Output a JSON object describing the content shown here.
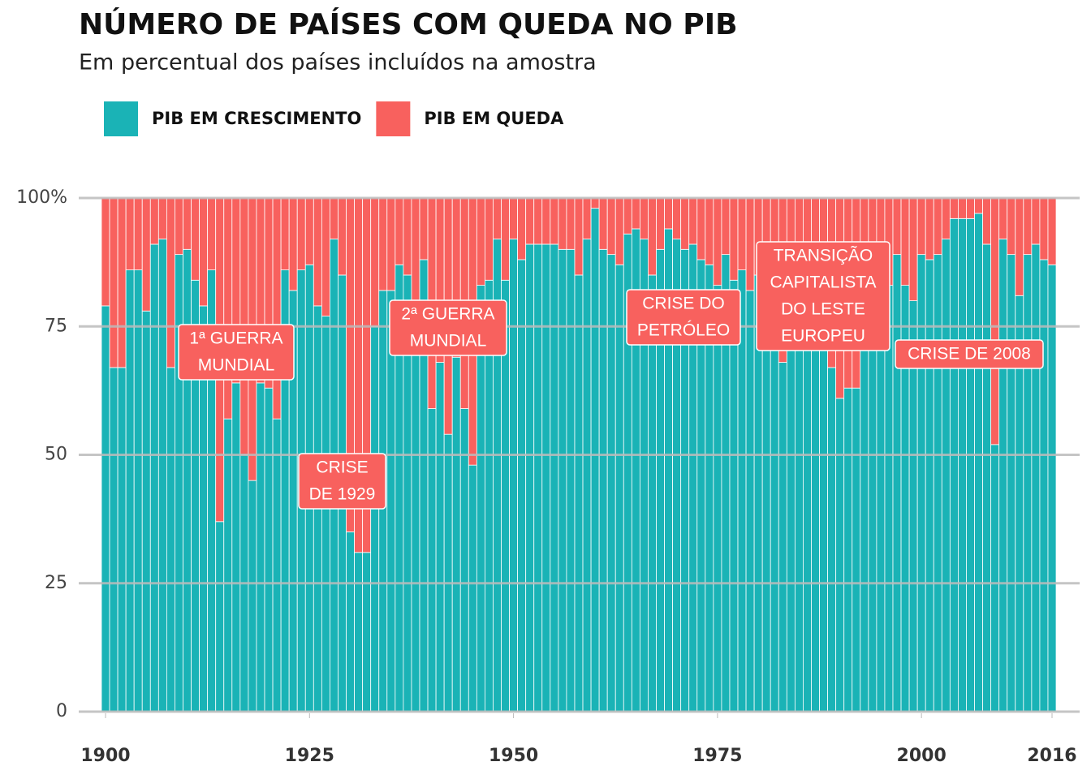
{
  "chart_data": {
    "type": "bar",
    "stacked": true,
    "title": "NÚMERO DE PAÍSES COM QUEDA NO PIB",
    "subtitle": "Em percentual dos países incluídos na amostra",
    "x": [
      1900,
      1901,
      1902,
      1903,
      1904,
      1905,
      1906,
      1907,
      1908,
      1909,
      1910,
      1911,
      1912,
      1913,
      1914,
      1915,
      1916,
      1917,
      1918,
      1919,
      1920,
      1921,
      1922,
      1923,
      1924,
      1925,
      1926,
      1927,
      1928,
      1929,
      1930,
      1931,
      1932,
      1933,
      1934,
      1935,
      1936,
      1937,
      1938,
      1939,
      1940,
      1941,
      1942,
      1943,
      1944,
      1945,
      1946,
      1947,
      1948,
      1949,
      1950,
      1951,
      1952,
      1953,
      1954,
      1955,
      1956,
      1957,
      1958,
      1959,
      1960,
      1961,
      1962,
      1963,
      1964,
      1965,
      1966,
      1967,
      1968,
      1969,
      1970,
      1971,
      1972,
      1973,
      1974,
      1975,
      1976,
      1977,
      1978,
      1979,
      1980,
      1981,
      1982,
      1983,
      1984,
      1985,
      1986,
      1987,
      1988,
      1989,
      1990,
      1991,
      1992,
      1993,
      1994,
      1995,
      1996,
      1997,
      1998,
      1999,
      2000,
      2001,
      2002,
      2003,
      2004,
      2005,
      2006,
      2007,
      2008,
      2009,
      2010,
      2011,
      2012,
      2013,
      2014,
      2015,
      2016
    ],
    "series": [
      {
        "name": "PIB EM CRESCIMENTO",
        "color": "#1ab3b6",
        "values": [
          79,
          67,
          67,
          86,
          86,
          78,
          91,
          92,
          67,
          89,
          90,
          84,
          79,
          86,
          37,
          57,
          64,
          50,
          45,
          64,
          63,
          57,
          86,
          82,
          86,
          87,
          79,
          77,
          92,
          85,
          35,
          31,
          31,
          75,
          82,
          82,
          87,
          85,
          72,
          88,
          59,
          68,
          54,
          69,
          59,
          48,
          83,
          84,
          92,
          84,
          92,
          88,
          91,
          91,
          91,
          91,
          90,
          90,
          85,
          92,
          98,
          90,
          89,
          87,
          93,
          94,
          92,
          85,
          90,
          94,
          92,
          90,
          91,
          88,
          87,
          83,
          89,
          84,
          86,
          82,
          85,
          80,
          75,
          68,
          80,
          82,
          78,
          76,
          72,
          67,
          61,
          63,
          63,
          71,
          75,
          79,
          83,
          89,
          83,
          80,
          89,
          88,
          89,
          92,
          96,
          96,
          96,
          97,
          91,
          52,
          92,
          89,
          81,
          89,
          91,
          88,
          87
        ]
      },
      {
        "name": "PIB EM QUEDA",
        "color": "#f8615e",
        "values": [
          21,
          33,
          33,
          14,
          14,
          22,
          9,
          8,
          33,
          11,
          10,
          16,
          21,
          14,
          63,
          43,
          36,
          50,
          55,
          36,
          37,
          43,
          14,
          18,
          14,
          13,
          21,
          23,
          8,
          15,
          65,
          69,
          69,
          25,
          18,
          18,
          13,
          15,
          28,
          12,
          41,
          32,
          46,
          31,
          41,
          52,
          17,
          16,
          8,
          16,
          8,
          12,
          9,
          9,
          9,
          9,
          10,
          10,
          15,
          8,
          2,
          10,
          11,
          13,
          7,
          6,
          8,
          15,
          10,
          6,
          8,
          10,
          9,
          12,
          13,
          17,
          11,
          16,
          14,
          18,
          15,
          20,
          25,
          32,
          20,
          18,
          22,
          24,
          28,
          33,
          39,
          37,
          37,
          29,
          25,
          21,
          17,
          11,
          17,
          20,
          11,
          12,
          11,
          8,
          4,
          4,
          4,
          3,
          9,
          48,
          8,
          11,
          19,
          11,
          9,
          12,
          13
        ]
      }
    ],
    "xlim": [
      1900,
      2016
    ],
    "xticks": [
      1900,
      1925,
      1950,
      1975,
      2000,
      2016
    ],
    "ylim": [
      0,
      100
    ],
    "yticks": [
      0,
      25,
      50,
      75,
      {
        "value": 100,
        "label": "100%"
      }
    ],
    "grid": true,
    "annotations": [
      {
        "lines": [
          "1ª GUERRA",
          "MUNDIAL"
        ]
      },
      {
        "lines": [
          "CRISE",
          "DE 1929"
        ]
      },
      {
        "lines": [
          "2ª GUERRA",
          "MUNDIAL"
        ]
      },
      {
        "lines": [
          "CRISE DO",
          "PETRÓLEO"
        ]
      },
      {
        "lines": [
          "TRANSIÇÃO",
          "CAPITALISTA",
          "DO LESTE",
          "EUROPEU"
        ]
      },
      {
        "lines": [
          "CRISE DE 2008"
        ]
      }
    ]
  }
}
